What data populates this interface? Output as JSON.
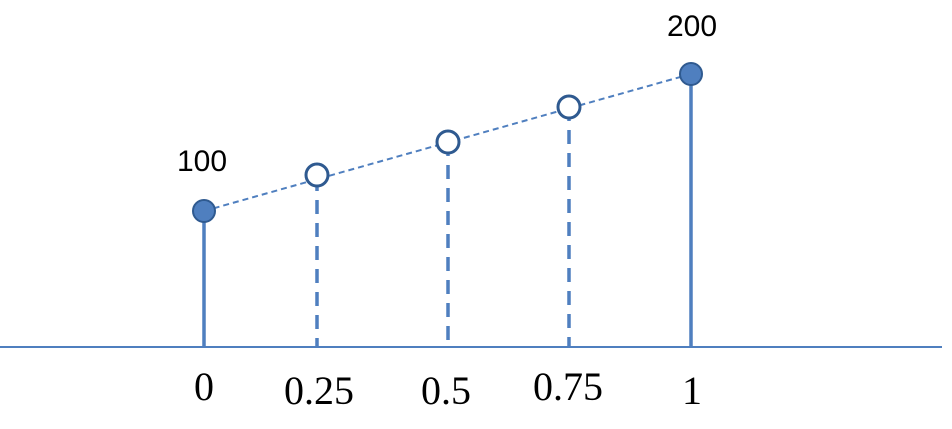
{
  "diagram": {
    "description_labels": {
      "start_value": "100",
      "end_value": "200"
    },
    "x_ticks": [
      "0",
      "0.25",
      "0.5",
      "0.75",
      "1"
    ],
    "points": [
      {
        "x": 0,
        "y": 100,
        "kind": "known"
      },
      {
        "x": 0.25,
        "y": 125,
        "kind": "interpolated"
      },
      {
        "x": 0.5,
        "y": 150,
        "kind": "interpolated"
      },
      {
        "x": 0.75,
        "y": 175,
        "kind": "interpolated"
      },
      {
        "x": 1,
        "y": 200,
        "kind": "known"
      }
    ],
    "colors": {
      "stem": "#4f7fbf",
      "marker_fill": "#4f7fbf",
      "marker_stroke": "#2f5a90",
      "axis": "#4f7fbf",
      "text": "#000000"
    }
  }
}
